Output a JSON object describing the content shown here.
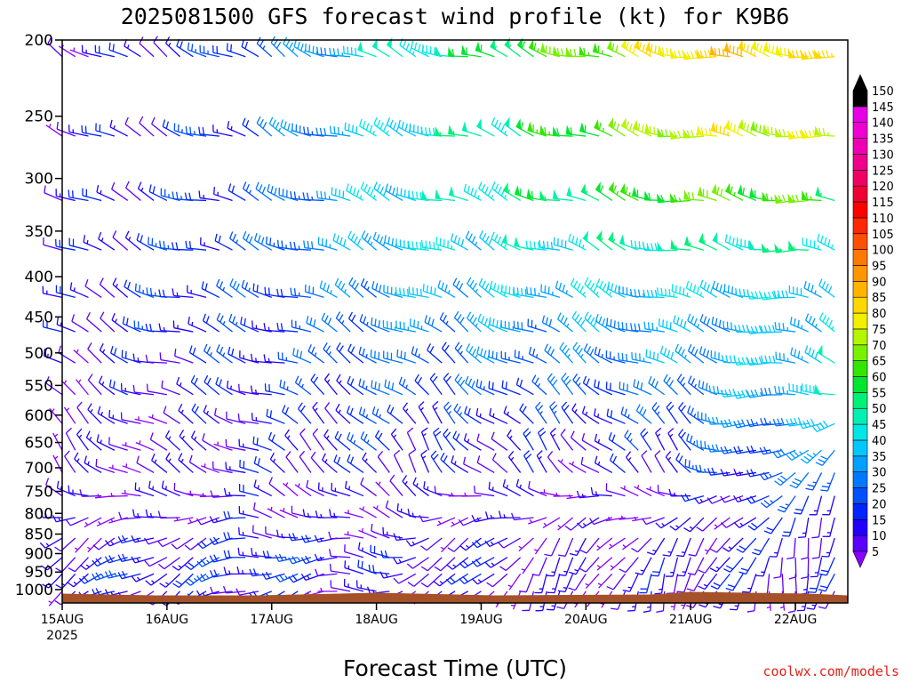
{
  "chart_data": {
    "type": "wind-barb-profile",
    "title": "2025081500 GFS forecast wind profile (kt) for K9B6",
    "xlabel": "Forecast Time (UTC)",
    "ylabel": "",
    "credit": "coolwx.com/models",
    "y_axis": {
      "scale": "log-pressure",
      "inverted": true,
      "ticks": [
        200,
        250,
        300,
        350,
        400,
        450,
        500,
        550,
        600,
        650,
        700,
        750,
        800,
        850,
        900,
        950,
        1000
      ],
      "ylim": [
        200,
        1040
      ]
    },
    "x_axis": {
      "ticks": [
        {
          "label": "15AUG",
          "sublabel": "2025",
          "hour": 0
        },
        {
          "label": "16AUG",
          "hour": 24
        },
        {
          "label": "17AUG",
          "hour": 48
        },
        {
          "label": "18AUG",
          "hour": 72
        },
        {
          "label": "19AUG",
          "hour": 96
        },
        {
          "label": "20AUG",
          "hour": 120
        },
        {
          "label": "21AUG",
          "hour": 144
        },
        {
          "label": "22AUG",
          "hour": 168
        }
      ],
      "xlim_hours": [
        0,
        180
      ]
    },
    "barb_interval_hours": 3,
    "barb_levels": [
      210,
      265,
      320,
      370,
      425,
      470,
      515,
      565,
      615,
      665,
      710,
      760,
      810,
      860,
      910,
      955,
      1005
    ],
    "terrain_pressure": 1012,
    "colorbar": {
      "ticks": [
        5,
        10,
        15,
        20,
        25,
        30,
        35,
        40,
        45,
        50,
        55,
        60,
        65,
        70,
        75,
        80,
        85,
        90,
        95,
        100,
        105,
        110,
        115,
        120,
        125,
        130,
        135,
        140,
        145,
        150
      ],
      "colors": [
        "#8a00ff",
        "#5a00ff",
        "#2200ff",
        "#0024ff",
        "#0050ff",
        "#0078ff",
        "#00a0ff",
        "#00c8ff",
        "#00e6e6",
        "#00f0b4",
        "#00f078",
        "#00e630",
        "#32e600",
        "#78f000",
        "#b4f500",
        "#f0f000",
        "#ffd700",
        "#ffb400",
        "#ff9600",
        "#ff7800",
        "#ff5000",
        "#ff2800",
        "#ff0000",
        "#f00032",
        "#f00064",
        "#f0008c",
        "#f000b4",
        "#f000d2",
        "#e600e6",
        "#000000"
      ]
    },
    "speed_profile_kt": {
      "levels": [
        200,
        250,
        300,
        350,
        400,
        450,
        500,
        550,
        600,
        650,
        700,
        750,
        800,
        850,
        900,
        950,
        1000
      ],
      "hours": [
        0,
        24,
        48,
        72,
        96,
        120,
        144,
        168,
        180
      ],
      "speed": [
        [
          10,
          15,
          25,
          45,
          55,
          70,
          85,
          85,
          80
        ],
        [
          12,
          15,
          25,
          40,
          50,
          65,
          80,
          80,
          75
        ],
        [
          12,
          15,
          25,
          40,
          50,
          60,
          75,
          70,
          65
        ],
        [
          12,
          20,
          25,
          40,
          45,
          50,
          55,
          55,
          50
        ],
        [
          12,
          20,
          25,
          35,
          40,
          45,
          45,
          45,
          45
        ],
        [
          12,
          20,
          20,
          30,
          35,
          35,
          35,
          35,
          45
        ],
        [
          12,
          15,
          20,
          25,
          30,
          30,
          35,
          40,
          45
        ],
        [
          10,
          15,
          20,
          25,
          25,
          25,
          30,
          40,
          45
        ],
        [
          10,
          12,
          15,
          20,
          20,
          20,
          25,
          35,
          40
        ],
        [
          10,
          10,
          15,
          20,
          15,
          15,
          25,
          30,
          35
        ],
        [
          8,
          10,
          15,
          15,
          15,
          10,
          20,
          25,
          30
        ],
        [
          8,
          10,
          12,
          12,
          10,
          8,
          12,
          20,
          25
        ],
        [
          8,
          8,
          12,
          10,
          10,
          8,
          10,
          18,
          20
        ],
        [
          10,
          12,
          15,
          10,
          12,
          8,
          10,
          15,
          15
        ],
        [
          15,
          15,
          20,
          15,
          15,
          10,
          15,
          15,
          15
        ],
        [
          20,
          20,
          20,
          15,
          15,
          10,
          15,
          15,
          15
        ],
        [
          12,
          12,
          15,
          10,
          10,
          8,
          10,
          10,
          10
        ]
      ]
    },
    "direction_profile_deg": {
      "levels": [
        200,
        300,
        500,
        700,
        850,
        1000
      ],
      "hours": [
        0,
        24,
        48,
        72,
        96,
        120,
        144,
        168,
        180
      ],
      "direction": [
        [
          300,
          300,
          300,
          290,
          290,
          290,
          280,
          280,
          280
        ],
        [
          300,
          290,
          290,
          290,
          290,
          290,
          280,
          280,
          280
        ],
        [
          300,
          290,
          290,
          300,
          300,
          300,
          290,
          280,
          300
        ],
        [
          320,
          300,
          300,
          330,
          320,
          320,
          320,
          220,
          220
        ],
        [
          240,
          240,
          270,
          280,
          230,
          220,
          220,
          200,
          200
        ],
        [
          240,
          240,
          250,
          270,
          220,
          200,
          200,
          190,
          190
        ]
      ]
    }
  }
}
